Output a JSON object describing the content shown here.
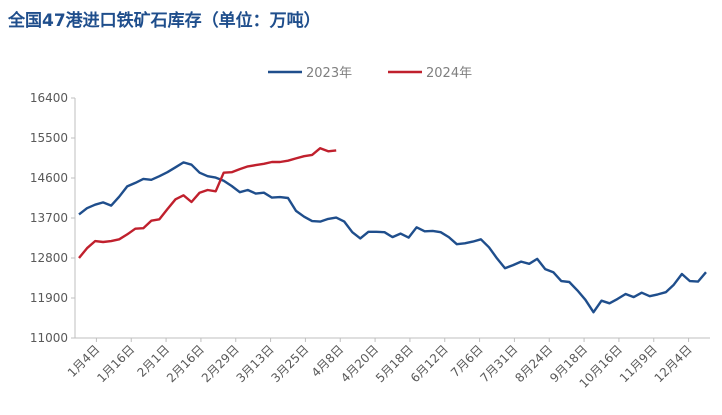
{
  "chart_data": {
    "type": "line",
    "title": "全国47港进口铁矿石库存（单位：万吨）",
    "ylim": [
      11000,
      16400
    ],
    "yticks": [
      11000,
      11900,
      12800,
      13700,
      14600,
      15500,
      16400
    ],
    "xtick_labels": [
      "1月4日",
      "1月16日",
      "2月1日",
      "2月16日",
      "2月29日",
      "3月13日",
      "3月25日",
      "4月8日",
      "4月20日",
      "5月18日",
      "6月12日",
      "7月6日",
      "7月31日",
      "8月24日",
      "9月18日",
      "10月16日",
      "11月9日",
      "12月4日"
    ],
    "series": [
      {
        "name": "2023年",
        "color": "#1f4e8c",
        "values": [
          13780,
          13920,
          14000,
          14050,
          13980,
          14180,
          14410,
          14490,
          14580,
          14560,
          14640,
          14730,
          14840,
          14950,
          14900,
          14720,
          14640,
          14610,
          14540,
          14420,
          14280,
          14330,
          14250,
          14270,
          14160,
          14170,
          14150,
          13860,
          13730,
          13630,
          13620,
          13680,
          13710,
          13620,
          13380,
          13240,
          13390,
          13390,
          13380,
          13270,
          13350,
          13260,
          13490,
          13400,
          13410,
          13380,
          13270,
          13110,
          13130,
          13170,
          13220,
          13040,
          12790,
          12570,
          12640,
          12720,
          12670,
          12780,
          12550,
          12480,
          12280,
          12260,
          12070,
          11860,
          11580,
          11840,
          11780,
          11880,
          11990,
          11920,
          12020,
          11940,
          11980,
          12030,
          12200,
          12440,
          12280,
          12270,
          12480
        ]
      },
      {
        "name": "2024年",
        "color": "#c0202d",
        "values": [
          12800,
          13020,
          13180,
          13160,
          13180,
          13220,
          13330,
          13460,
          13470,
          13640,
          13670,
          13900,
          14120,
          14210,
          14060,
          14270,
          14330,
          14300,
          14720,
          14730,
          14800,
          14860,
          14890,
          14920,
          14960,
          14960,
          14990,
          15040,
          15090,
          15120,
          15270,
          15200,
          15220
        ]
      }
    ]
  }
}
